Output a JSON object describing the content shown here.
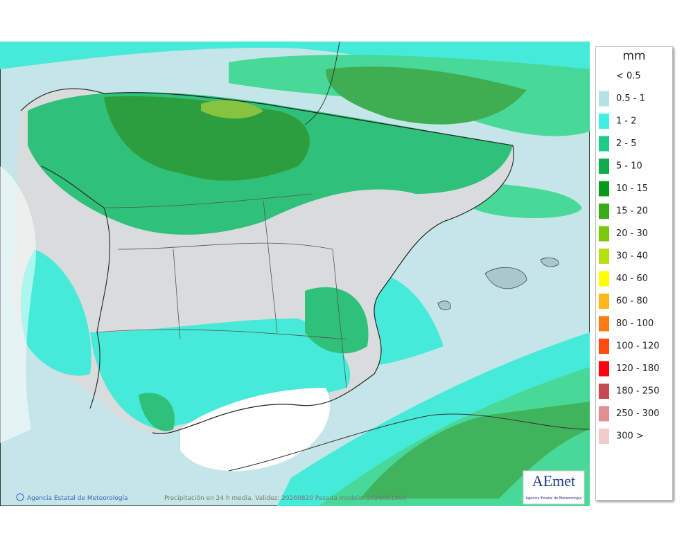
{
  "legend": {
    "title": "mm",
    "items": [
      {
        "label": "< 0.5",
        "color": null
      },
      {
        "label": "0.5 - 1",
        "color": "#b4e1e4"
      },
      {
        "label": "1 - 2",
        "color": "#3ef0e0"
      },
      {
        "label": "2 - 5",
        "color": "#1ecc88"
      },
      {
        "label": "5 - 10",
        "color": "#10ad4a"
      },
      {
        "label": "10 - 15",
        "color": "#06991a"
      },
      {
        "label": "15 - 20",
        "color": "#3aaa17"
      },
      {
        "label": "20 - 30",
        "color": "#7cc80a"
      },
      {
        "label": "30 - 40",
        "color": "#b8e010"
      },
      {
        "label": "40 - 60",
        "color": "#ffff00"
      },
      {
        "label": "60 - 80",
        "color": "#ffb81a"
      },
      {
        "label": "80 - 100",
        "color": "#ff7a10"
      },
      {
        "label": "100 - 120",
        "color": "#ff4a10"
      },
      {
        "label": "120 - 180",
        "color": "#ff0010"
      },
      {
        "label": "180 - 250",
        "color": "#c84850"
      },
      {
        "label": "250 - 300",
        "color": "#e09090"
      },
      {
        "label": "300 >",
        "color": "#f2cccc"
      }
    ]
  },
  "footer": {
    "credit": "Agencia Estatal de Meteorología",
    "caption": "Precipitación en 24 h media. Validez: 20260820 Pasada modelo: 2026081900"
  },
  "logo": {
    "name": "AEmet",
    "subtitle": "Agencia Estatal de Meteorología"
  }
}
